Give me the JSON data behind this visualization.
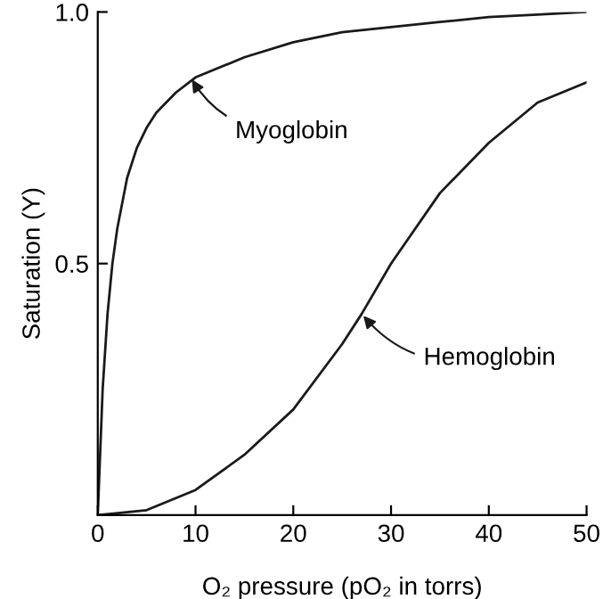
{
  "chart_data": {
    "type": "line",
    "xlabel": "O₂ pressure (pO₂ in torrs)",
    "ylabel": "Saturation (Y)",
    "xlim": [
      0,
      50
    ],
    "ylim": [
      0,
      1.0
    ],
    "xticks": [
      0,
      10,
      20,
      30,
      40,
      50
    ],
    "yticks": [
      {
        "value": 0,
        "label": null
      },
      0.5,
      {
        "value": 1.0,
        "label": "1.0"
      }
    ],
    "grid": false,
    "legend": false,
    "marker": "none",
    "line_style": "solid",
    "series": [
      {
        "color": "#1a1a1a",
        "x": [
          0,
          0.5,
          1,
          1.5,
          2,
          3,
          4,
          5,
          6,
          8,
          10,
          15,
          20,
          25,
          30,
          35,
          40,
          45,
          50
        ],
        "values": [
          0,
          0.25,
          0.4,
          0.5,
          0.57,
          0.67,
          0.73,
          0.77,
          0.8,
          0.84,
          0.87,
          0.91,
          0.94,
          0.96,
          0.97,
          0.98,
          0.99,
          0.995,
          1.0
        ]
      },
      {
        "color": "#1a1a1a",
        "x": [
          0,
          5,
          10,
          15,
          20,
          25,
          27,
          30,
          35,
          40,
          45,
          50
        ],
        "values": [
          0,
          0.01,
          0.05,
          0.12,
          0.21,
          0.34,
          0.4,
          0.5,
          0.64,
          0.74,
          0.82,
          0.86
        ]
      }
    ],
    "annotations": [
      {
        "text": "Myoglobin",
        "x": 9.5,
        "y": 0.87
      },
      {
        "text": "Hemoglobin",
        "x": 27,
        "y": 0.4
      }
    ]
  }
}
